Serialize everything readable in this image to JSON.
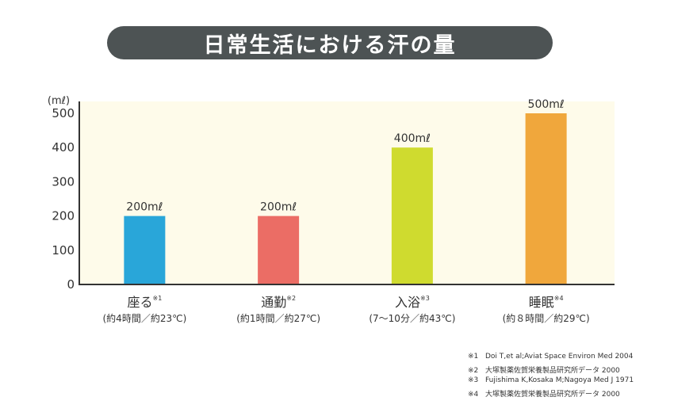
{
  "title": "日常生活における汗の量",
  "colors": {
    "plot_bg": "#fefbea",
    "axis": "#333333",
    "title_bg": "#4d5354"
  },
  "chart_data": {
    "type": "bar",
    "unit_label": "(mℓ)",
    "ylim": [
      0,
      500
    ],
    "yticks": [
      0,
      100,
      200,
      300,
      400,
      500
    ],
    "grid": false,
    "categories": [
      "座る",
      "通勤",
      "入浴",
      "睡眠"
    ],
    "superscripts": [
      "※1",
      "※2",
      "※3",
      "※4"
    ],
    "sublabels": [
      "(約4時間／約23℃)",
      "(約1時間／約27℃)",
      "(7～10分／約43℃)",
      "(約８時間／約29℃)"
    ],
    "values": [
      200,
      200,
      400,
      500
    ],
    "data_labels": [
      "200mℓ",
      "200mℓ",
      "400mℓ",
      "500mℓ"
    ],
    "bar_colors": [
      "#29a6d9",
      "#eb6d65",
      "#cfdb2f",
      "#f0a73c"
    ]
  },
  "footnotes": [
    {
      "mark": "※1",
      "text": "Doi T,et al;Aviat Space Environ Med 2004"
    },
    {
      "mark": "※2",
      "text": "大塚製薬佐賀栄養製品研究所データ 2000"
    },
    {
      "mark": "※3",
      "text": "Fujishima K,Kosaka M;Nagoya Med J 1971"
    },
    {
      "mark": "※4",
      "text": "大塚製薬佐賀栄養製品研究所データ 2000"
    }
  ]
}
